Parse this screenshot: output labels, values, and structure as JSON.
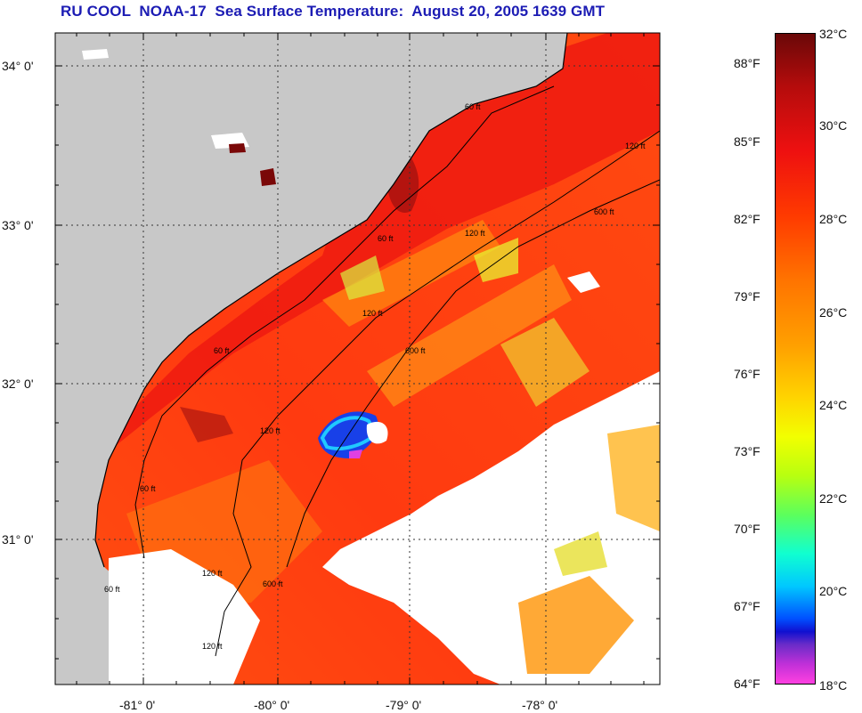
{
  "title": "RU COOL  NOAA-17  Sea Surface Temperature:  August 20, 2005 1639 GMT",
  "colors": {
    "title": "#1c1cb4",
    "land": "#c8c8c8",
    "cloud": "#ffffff",
    "grid": "#333333"
  },
  "map": {
    "lat_labels": [
      "34° 0'",
      "33° 0'",
      "32° 0'",
      "31° 0'"
    ],
    "lon_labels": [
      "-81° 0'",
      "-80° 0'",
      "-79° 0'",
      "-78° 0'"
    ],
    "isobath_labels": [
      "60 ft",
      "60 ft",
      "120 ft",
      "600 ft",
      "60 ft",
      "120 ft",
      "600 ft",
      "120 ft",
      "60 ft",
      "600 ft",
      "120 ft",
      "60 ft",
      "120 ft",
      "120 ft"
    ]
  },
  "colorbar": {
    "fahrenheit": [
      "88°F",
      "85°F",
      "82°F",
      "79°F",
      "76°F",
      "73°F",
      "70°F",
      "67°F",
      "64°F"
    ],
    "celsius": [
      "32°C",
      "30°C",
      "28°C",
      "26°C",
      "24°C",
      "22°C",
      "20°C",
      "18°C"
    ]
  }
}
